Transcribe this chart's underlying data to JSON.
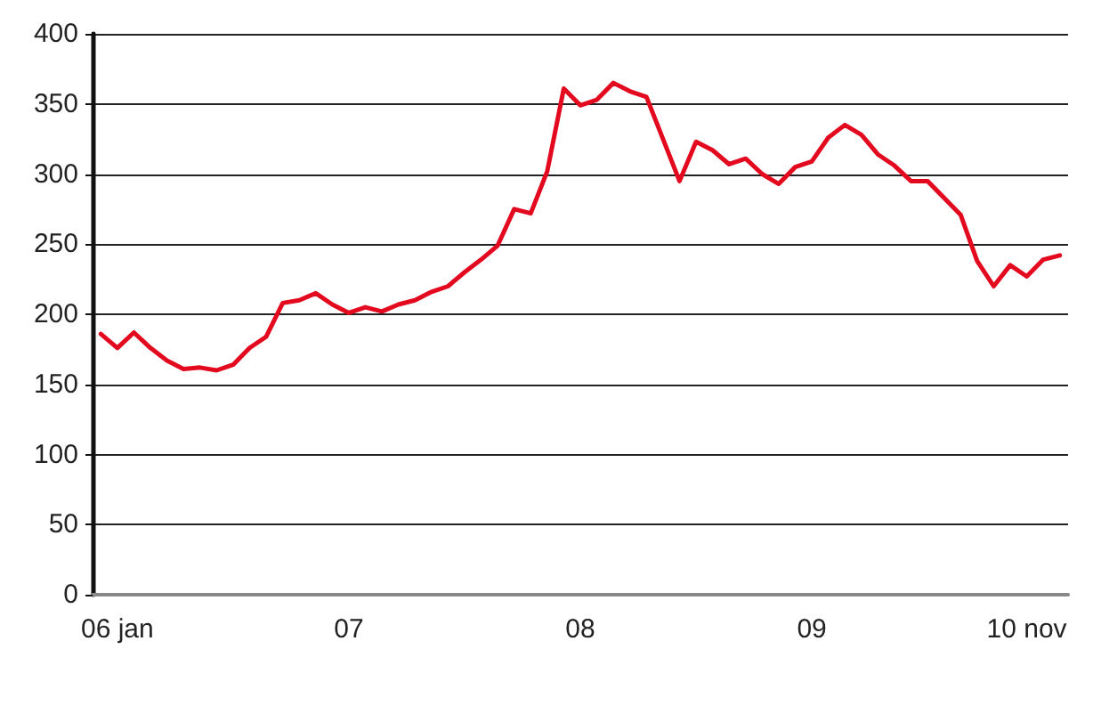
{
  "chart_data": {
    "type": "line",
    "categories": [
      null,
      "06 jan",
      null,
      null,
      null,
      null,
      null,
      null,
      null,
      null,
      null,
      null,
      null,
      null,
      null,
      "07",
      null,
      null,
      null,
      null,
      null,
      null,
      null,
      null,
      null,
      null,
      null,
      null,
      null,
      "08",
      null,
      null,
      null,
      null,
      null,
      null,
      null,
      null,
      null,
      null,
      null,
      null,
      null,
      "09",
      null,
      null,
      null,
      null,
      null,
      null,
      null,
      null,
      null,
      null,
      null,
      null,
      "10 nov",
      null,
      null
    ],
    "series": [
      {
        "color": "#e30a1f",
        "values": [
          186,
          176,
          187,
          176,
          167,
          161,
          162,
          160,
          164,
          176,
          184,
          208,
          210,
          215,
          207,
          201,
          205,
          202,
          207,
          210,
          216,
          220,
          230,
          239,
          249,
          275,
          272,
          302,
          361,
          349,
          353,
          365,
          359,
          355,
          325,
          295,
          323,
          317,
          307,
          311,
          300,
          293,
          305,
          309,
          326,
          335,
          328,
          314,
          306,
          295,
          295,
          283,
          271,
          238,
          220,
          235,
          227,
          239,
          242
        ]
      }
    ],
    "ylim": [
      0,
      400
    ],
    "yticks": [
      0,
      50,
      100,
      150,
      200,
      250,
      300,
      350,
      400
    ],
    "grid": "y",
    "marker": "none",
    "line_style": "solid"
  }
}
